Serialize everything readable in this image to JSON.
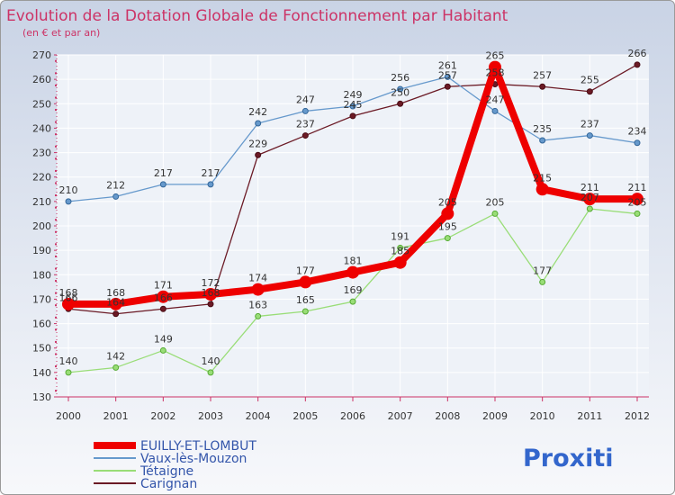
{
  "chart_data": {
    "type": "line",
    "title": "Evolution de la Dotation Globale de Fonctionnement par Habitant",
    "subtitle": "(en € et par an)",
    "xlabel": "",
    "ylabel": "",
    "ylim": [
      130,
      270
    ],
    "yticks": [
      130,
      140,
      150,
      160,
      170,
      180,
      190,
      200,
      210,
      220,
      230,
      240,
      250,
      260,
      270
    ],
    "categories": [
      "2000",
      "2001",
      "2002",
      "2003",
      "2004",
      "2005",
      "2006",
      "2007",
      "2008",
      "2009",
      "2010",
      "2011",
      "2012"
    ],
    "grid": true,
    "legend_position": "bottom-left",
    "series": [
      {
        "name": "Carignan",
        "color": "#6b1a25",
        "values": [
          166,
          164,
          166,
          168,
          229,
          237,
          245,
          250,
          257,
          258,
          257,
          255,
          266
        ]
      },
      {
        "name": "Tétaigne",
        "color": "#99dd77",
        "values": [
          140,
          142,
          149,
          140,
          163,
          165,
          169,
          191,
          195,
          205,
          177,
          207,
          205
        ]
      },
      {
        "name": "Vaux-lès-Mouzon",
        "color": "#6699cc",
        "values": [
          210,
          212,
          217,
          217,
          242,
          247,
          249,
          256,
          261,
          247,
          235,
          237,
          234
        ]
      },
      {
        "name": "EUILLY-ET-LOMBUT",
        "color": "#ee0000",
        "values": [
          168,
          168,
          171,
          172,
          174,
          177,
          181,
          185,
          205,
          265,
          215,
          211,
          211
        ]
      }
    ]
  },
  "legend_order": [
    "EUILLY-ET-LOMBUT",
    "Vaux-lès-Mouzon",
    "Tétaigne",
    "Carignan"
  ],
  "branding": {
    "logo_text": "Proxiti"
  }
}
